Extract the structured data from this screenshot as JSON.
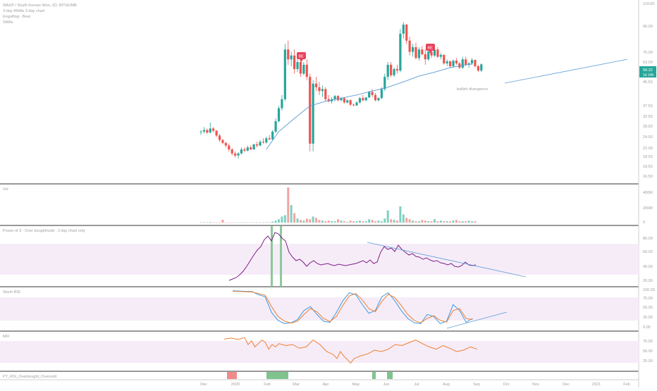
{
  "colors": {
    "up": "#26a69a",
    "down": "#ef5350",
    "up_vol": "#7fd1c1",
    "down_vol": "#f3a4a2",
    "ma": "#5b9bd5",
    "band": "#f6ecf8",
    "pos": "#7e1f86",
    "stoch_k": "#3c9be4",
    "stoch_d": "#f07f2e",
    "mfi": "#f07f2e",
    "grid": "#9e9e9e",
    "axis_text": "#9e9e9e",
    "price_tag": "#26a69a",
    "be": "#e8435a",
    "ob": "#7fc48f",
    "os": "#f18a8a"
  },
  "header": {
    "line1": "WAXP / South Korean Won, 2D, BITHUMB",
    "line2": "3-day RMAs 3-day chart",
    "line3": "Engulfing - Bear",
    "line4": "SMAs"
  },
  "price_tag": {
    "value": "58.32",
    "countdown": "1d 14h"
  },
  "be_label": "BE",
  "annotation": "bullish divergence",
  "panes": {
    "vol": "Vol",
    "pos": "Power of 3 - Over bought/sold - 3 day chart only",
    "stoch": "Stoch RSI",
    "mfi": "MFI",
    "bar": "PT_RSI_Overbought_Oversold"
  },
  "price_axis": [
    "110.00",
    "90.00",
    "75.00",
    "63.00",
    "55.00",
    "46.50",
    "37.50",
    "32.50",
    "28.50",
    "24.50",
    "21.00",
    "18.50",
    "16.50"
  ],
  "vol_axis": [
    "400M",
    "200M",
    "0"
  ],
  "pos_axis": [
    "80.00",
    "60.00",
    "40.00",
    "20.00"
  ],
  "stoch_axis": [
    "100.00",
    "75.00",
    "50.00",
    "25.00",
    "0.00"
  ],
  "mfi_axis": [
    "75.00",
    "50.00",
    "25.00"
  ],
  "time_axis": [
    "Dec",
    "2020",
    "Feb",
    "Mar",
    "Apr",
    "May",
    "Jun",
    "Jul",
    "Aug",
    "Sep",
    "Oct",
    "Nov",
    "Dec",
    "2021",
    "Feb"
  ],
  "chart_data": {
    "type": "candlestick",
    "title": "WAXP / South Korean Won, 2D, BITHUMB",
    "x_ticks": [
      "Dec",
      "2020",
      "Feb",
      "Mar",
      "Apr",
      "May",
      "Jun",
      "Jul",
      "Aug",
      "Sep",
      "Oct",
      "Nov",
      "Dec",
      "2021",
      "Feb"
    ],
    "y_scale": "log",
    "ylim": [
      14.5,
      120
    ],
    "candles_ohlc": [
      [
        25.5,
        26,
        24.5,
        25.5
      ],
      [
        25.5,
        27,
        25,
        26
      ],
      [
        26,
        26.5,
        24.8,
        25.2
      ],
      [
        25.2,
        28.5,
        25,
        26.5
      ],
      [
        26.5,
        27,
        25.3,
        25.8
      ],
      [
        25.8,
        26,
        23.8,
        24.3
      ],
      [
        24.3,
        24.8,
        22.5,
        23
      ],
      [
        23,
        23.3,
        21.8,
        22.2
      ],
      [
        22.2,
        22.5,
        21,
        21.5
      ],
      [
        21.5,
        22,
        20,
        20.5
      ],
      [
        20.5,
        20.8,
        19,
        19.5
      ],
      [
        19.5,
        20,
        18.5,
        19
      ],
      [
        19,
        19.8,
        18.3,
        19.5
      ],
      [
        19.5,
        21,
        19.3,
        20.5
      ],
      [
        20.5,
        21,
        19.8,
        20.2
      ],
      [
        20.2,
        21.5,
        20,
        21
      ],
      [
        21,
        21.5,
        20.3,
        20.5
      ],
      [
        20.5,
        22,
        20.4,
        21.8
      ],
      [
        21.8,
        22.5,
        21,
        21.5
      ],
      [
        21.5,
        23,
        21.3,
        22.5
      ],
      [
        22.5,
        23.5,
        22,
        22.3
      ],
      [
        22.3,
        24,
        22,
        23.5
      ],
      [
        23.5,
        24.5,
        23,
        23.2
      ],
      [
        23.2,
        26,
        23,
        25.5
      ],
      [
        25.5,
        30,
        25,
        29
      ],
      [
        29,
        35,
        28.5,
        34
      ],
      [
        34,
        40,
        33,
        38
      ],
      [
        38,
        75,
        37,
        70
      ],
      [
        70,
        78,
        58,
        62
      ],
      [
        62,
        68,
        57,
        65
      ],
      [
        65,
        70,
        52,
        55
      ],
      [
        55,
        62,
        53,
        60
      ],
      [
        60,
        64,
        50,
        52
      ],
      [
        52,
        60,
        51,
        58
      ],
      [
        58,
        62,
        48,
        50
      ],
      [
        50,
        52,
        20,
        22
      ],
      [
        22,
        48,
        20,
        46
      ],
      [
        46,
        50,
        42,
        44
      ],
      [
        44,
        47,
        40,
        42
      ],
      [
        42,
        45,
        39,
        43
      ],
      [
        43,
        44,
        37,
        38
      ],
      [
        38,
        40,
        36.5,
        37
      ],
      [
        37,
        39,
        36,
        38
      ],
      [
        38,
        40,
        37,
        39.5
      ],
      [
        39.5,
        40,
        37,
        37.5
      ],
      [
        37.5,
        39,
        37,
        38.5
      ],
      [
        38.5,
        39,
        36,
        36.5
      ],
      [
        36.5,
        38,
        36,
        37.5
      ],
      [
        37.5,
        38,
        35,
        35.5
      ],
      [
        35.5,
        36,
        34.8,
        35.2
      ],
      [
        35.2,
        37,
        35,
        36.5
      ],
      [
        36.5,
        39,
        36,
        38.5
      ],
      [
        38.5,
        40,
        37,
        37.5
      ],
      [
        37.5,
        39,
        37,
        38.8
      ],
      [
        38.8,
        42,
        38.5,
        41.5
      ],
      [
        41.5,
        43,
        39,
        40
      ],
      [
        40,
        41,
        37,
        37.5
      ],
      [
        37.5,
        39,
        37,
        38.5
      ],
      [
        38.5,
        44,
        38,
        43
      ],
      [
        43,
        52,
        42,
        50
      ],
      [
        50,
        60,
        48,
        58
      ],
      [
        58,
        60,
        50,
        51
      ],
      [
        51,
        56,
        50,
        55
      ],
      [
        55,
        58,
        52,
        54
      ],
      [
        54,
        90,
        53,
        85
      ],
      [
        85,
        98,
        80,
        95
      ],
      [
        95,
        96,
        75,
        78
      ],
      [
        78,
        82,
        65,
        68
      ],
      [
        68,
        75,
        64,
        72
      ],
      [
        72,
        76,
        62,
        63
      ],
      [
        63,
        72,
        61,
        70
      ],
      [
        70,
        73,
        65,
        66
      ],
      [
        66,
        70,
        58,
        62
      ],
      [
        62,
        69,
        61,
        68
      ],
      [
        68,
        70,
        63,
        65
      ],
      [
        65,
        72,
        64,
        70
      ],
      [
        70,
        72,
        63,
        64
      ],
      [
        64,
        67,
        62,
        65.5
      ],
      [
        65.5,
        66,
        58,
        59
      ],
      [
        59,
        62,
        57,
        60.5
      ],
      [
        60.5,
        61,
        56,
        57
      ],
      [
        57,
        62,
        56,
        61
      ],
      [
        61,
        63,
        58,
        59
      ],
      [
        59,
        60,
        55,
        56
      ],
      [
        56,
        64,
        55,
        62
      ],
      [
        62,
        64,
        57,
        58
      ],
      [
        58,
        60,
        56,
        59
      ],
      [
        59,
        63,
        58,
        61.5
      ],
      [
        61.5,
        62,
        56,
        57
      ],
      [
        57,
        58,
        53,
        54
      ],
      [
        54,
        59,
        53,
        58.3
      ]
    ],
    "sma": [
      [
        21,
        20.5
      ],
      [
        25,
        25.5
      ],
      [
        30,
        30
      ],
      [
        35,
        35
      ],
      [
        40,
        37
      ],
      [
        45,
        38.5
      ],
      [
        50,
        40
      ],
      [
        55,
        42
      ],
      [
        60,
        44
      ],
      [
        65,
        47
      ],
      [
        70,
        50.5
      ],
      [
        75,
        53
      ],
      [
        80,
        56
      ],
      [
        85,
        58
      ]
    ],
    "volume": [
      0.6,
      0.5,
      0.4,
      0.8,
      0.4,
      0.3,
      0.3,
      4.2,
      0.3,
      0.2,
      0.3,
      0.2,
      0.3,
      0.4,
      0.5,
      0.3,
      0.4,
      0.5,
      0.4,
      0.4,
      0.5,
      0.6,
      0.4,
      1.5,
      3,
      5,
      9,
      11,
      52,
      26,
      14,
      6,
      4,
      3,
      6,
      5,
      9,
      7,
      4,
      3,
      2,
      3,
      2,
      2,
      5,
      3,
      2,
      1,
      3,
      2,
      2,
      3,
      2,
      2,
      5,
      4,
      2,
      3,
      2,
      6,
      18,
      5,
      4,
      3,
      24,
      12,
      7,
      5,
      3,
      2,
      2,
      4,
      3,
      2,
      2,
      5,
      2,
      3,
      2,
      2,
      2,
      3,
      4,
      2,
      2,
      2,
      3,
      2,
      2
    ],
    "power_of_3": [
      [
        42,
        22
      ],
      [
        43,
        24
      ],
      [
        44,
        26
      ],
      [
        45,
        30
      ],
      [
        46,
        35
      ],
      [
        47,
        42
      ],
      [
        48,
        50
      ],
      [
        49,
        58
      ],
      [
        50,
        65
      ],
      [
        51,
        70
      ],
      [
        52,
        80
      ],
      [
        53,
        85
      ],
      [
        54,
        78
      ],
      [
        55,
        90
      ],
      [
        56,
        88
      ],
      [
        57,
        82
      ],
      [
        58,
        78
      ],
      [
        59,
        62
      ],
      [
        60,
        55
      ],
      [
        61,
        50
      ],
      [
        62,
        52
      ],
      [
        63,
        48
      ],
      [
        64,
        42
      ],
      [
        65,
        47
      ],
      [
        66,
        50
      ],
      [
        67,
        46
      ],
      [
        68,
        44
      ],
      [
        69,
        45
      ],
      [
        70,
        46
      ],
      [
        71,
        44
      ],
      [
        72,
        43
      ],
      [
        73,
        45
      ],
      [
        74,
        44
      ],
      [
        75,
        43
      ],
      [
        76,
        44
      ],
      [
        77,
        45
      ],
      [
        78,
        46
      ],
      [
        79,
        48
      ],
      [
        80,
        50
      ],
      [
        81,
        47
      ],
      [
        82,
        51
      ],
      [
        83,
        46
      ],
      [
        84,
        48
      ],
      [
        85,
        62
      ],
      [
        86,
        70
      ],
      [
        87,
        66
      ],
      [
        88,
        68
      ],
      [
        89,
        63
      ],
      [
        90,
        72
      ],
      [
        91,
        66
      ],
      [
        92,
        62
      ],
      [
        93,
        58
      ],
      [
        94,
        60
      ],
      [
        95,
        56
      ],
      [
        96,
        55
      ],
      [
        97,
        52
      ],
      [
        98,
        54
      ],
      [
        99,
        51
      ],
      [
        100,
        49
      ],
      [
        101,
        50
      ],
      [
        102,
        47
      ],
      [
        103,
        46
      ],
      [
        104,
        44
      ],
      [
        105,
        46
      ],
      [
        106,
        42
      ],
      [
        107,
        41
      ],
      [
        108,
        43
      ],
      [
        109,
        48
      ],
      [
        110,
        44
      ],
      [
        111,
        43
      ],
      [
        112,
        44
      ]
    ],
    "stoch_k": [
      [
        42,
        95
      ],
      [
        45,
        94
      ],
      [
        48,
        93
      ],
      [
        50,
        85
      ],
      [
        52,
        80
      ],
      [
        54,
        40
      ],
      [
        56,
        20
      ],
      [
        58,
        12
      ],
      [
        60,
        14
      ],
      [
        62,
        22
      ],
      [
        64,
        45
      ],
      [
        66,
        55
      ],
      [
        68,
        35
      ],
      [
        70,
        18
      ],
      [
        72,
        15
      ],
      [
        74,
        40
      ],
      [
        76,
        70
      ],
      [
        78,
        90
      ],
      [
        80,
        85
      ],
      [
        82,
        60
      ],
      [
        84,
        38
      ],
      [
        86,
        45
      ],
      [
        88,
        80
      ],
      [
        90,
        90
      ],
      [
        92,
        70
      ],
      [
        94,
        45
      ],
      [
        96,
        25
      ],
      [
        98,
        14
      ],
      [
        100,
        12
      ],
      [
        102,
        35
      ],
      [
        104,
        30
      ],
      [
        106,
        12
      ],
      [
        108,
        18
      ],
      [
        110,
        60
      ],
      [
        112,
        45
      ],
      [
        114,
        15
      ],
      [
        116,
        25
      ]
    ],
    "stoch_d": [
      [
        42,
        94
      ],
      [
        45,
        93
      ],
      [
        48,
        92
      ],
      [
        50,
        88
      ],
      [
        52,
        84
      ],
      [
        54,
        55
      ],
      [
        56,
        30
      ],
      [
        58,
        18
      ],
      [
        60,
        13
      ],
      [
        62,
        18
      ],
      [
        64,
        35
      ],
      [
        66,
        50
      ],
      [
        68,
        42
      ],
      [
        70,
        25
      ],
      [
        72,
        17
      ],
      [
        74,
        30
      ],
      [
        76,
        58
      ],
      [
        78,
        82
      ],
      [
        80,
        88
      ],
      [
        82,
        72
      ],
      [
        84,
        50
      ],
      [
        86,
        42
      ],
      [
        88,
        68
      ],
      [
        90,
        86
      ],
      [
        92,
        78
      ],
      [
        94,
        58
      ],
      [
        96,
        35
      ],
      [
        98,
        20
      ],
      [
        100,
        14
      ],
      [
        102,
        25
      ],
      [
        104,
        32
      ],
      [
        106,
        20
      ],
      [
        108,
        16
      ],
      [
        110,
        45
      ],
      [
        112,
        50
      ],
      [
        114,
        25
      ],
      [
        116,
        22
      ]
    ],
    "mfi": [
      [
        42,
        72
      ],
      [
        44,
        74
      ],
      [
        46,
        71
      ],
      [
        48,
        75
      ],
      [
        49,
        60
      ],
      [
        50,
        68
      ],
      [
        51,
        55
      ],
      [
        52,
        62
      ],
      [
        53,
        70
      ],
      [
        54,
        65
      ],
      [
        55,
        50
      ],
      [
        56,
        60
      ],
      [
        57,
        55
      ],
      [
        58,
        62
      ],
      [
        60,
        58
      ],
      [
        62,
        60
      ],
      [
        64,
        52
      ],
      [
        66,
        55
      ],
      [
        68,
        70
      ],
      [
        70,
        60
      ],
      [
        72,
        45
      ],
      [
        74,
        38
      ],
      [
        75,
        30
      ],
      [
        76,
        45
      ],
      [
        77,
        35
      ],
      [
        78,
        28
      ],
      [
        79,
        20
      ],
      [
        80,
        30
      ],
      [
        82,
        36
      ],
      [
        84,
        40
      ],
      [
        86,
        48
      ],
      [
        88,
        45
      ],
      [
        90,
        50
      ],
      [
        92,
        60
      ],
      [
        94,
        58
      ],
      [
        96,
        64
      ],
      [
        98,
        70
      ],
      [
        100,
        62
      ],
      [
        102,
        55
      ],
      [
        104,
        50
      ],
      [
        106,
        58
      ],
      [
        108,
        52
      ],
      [
        110,
        45
      ],
      [
        112,
        48
      ],
      [
        114,
        55
      ],
      [
        116,
        50
      ]
    ],
    "overbought_zones": [
      [
        46,
        55
      ],
      [
        95,
        96
      ],
      [
        100,
        102
      ]
    ],
    "oversold_zones": [
      [
        43,
        45
      ]
    ],
    "divergence_lines": {
      "price": [
        [
          78,
          62
        ],
        [
          100,
          50
        ]
      ],
      "pos": [
        [
          85,
          72
        ],
        [
          118,
          30
        ]
      ],
      "stoch": [
        [
          106,
          12
        ],
        [
          124,
          38
        ]
      ]
    }
  }
}
